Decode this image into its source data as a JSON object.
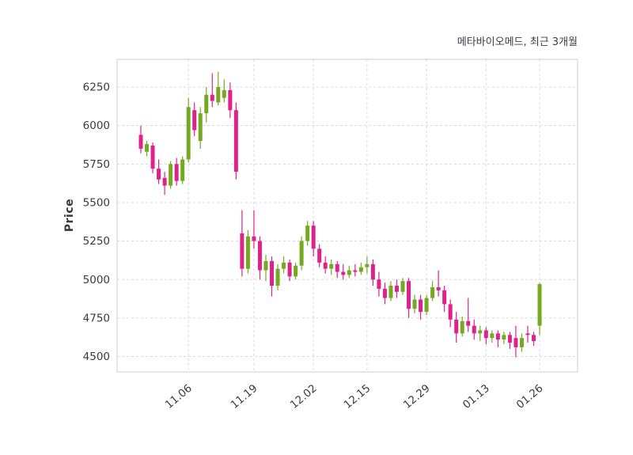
{
  "title": "메타바이오메드, 최근 3개월",
  "chart_data": {
    "type": "candlestick",
    "title": "메타바이오메드, 최근 3개월",
    "xlabel": "",
    "ylabel": "Price",
    "yticks": [
      4500,
      4750,
      5000,
      5250,
      5500,
      5750,
      6000,
      6250
    ],
    "ylim": [
      4400,
      6430
    ],
    "grid": "dashed",
    "xticks": [
      {
        "index": 8,
        "label": "11.06"
      },
      {
        "index": 19,
        "label": "11.19"
      },
      {
        "index": 29,
        "label": "12.02"
      },
      {
        "index": 38,
        "label": "12.15"
      },
      {
        "index": 48,
        "label": "12.29"
      },
      {
        "index": 58,
        "label": "01.13"
      },
      {
        "index": 67,
        "label": "01.26"
      }
    ],
    "colors": {
      "up": "#76a820",
      "down": "#e0218a",
      "grid": "#d8d8d8",
      "border": "#cccccc",
      "axis_text": "#3a3a3a"
    },
    "candles_format": [
      "open",
      "high",
      "low",
      "close"
    ],
    "candles": [
      [
        5940,
        6000,
        5820,
        5850
      ],
      [
        5830,
        5900,
        5800,
        5880
      ],
      [
        5870,
        5890,
        5690,
        5720
      ],
      [
        5720,
        5780,
        5620,
        5650
      ],
      [
        5660,
        5700,
        5550,
        5610
      ],
      [
        5610,
        5770,
        5590,
        5750
      ],
      [
        5750,
        5790,
        5610,
        5640
      ],
      [
        5640,
        5800,
        5620,
        5780
      ],
      [
        5780,
        6180,
        5760,
        6120
      ],
      [
        6100,
        6150,
        5930,
        5970
      ],
      [
        5900,
        6120,
        5850,
        6080
      ],
      [
        6080,
        6250,
        6020,
        6200
      ],
      [
        6200,
        6340,
        6120,
        6160
      ],
      [
        6150,
        6350,
        6130,
        6250
      ],
      [
        6180,
        6300,
        6150,
        6230
      ],
      [
        6230,
        6280,
        6050,
        6100
      ],
      [
        6100,
        6150,
        5650,
        5700
      ],
      [
        5300,
        5450,
        5020,
        5070
      ],
      [
        5070,
        5320,
        5040,
        5280
      ],
      [
        5280,
        5450,
        5200,
        5250
      ],
      [
        5250,
        5280,
        5000,
        5060
      ],
      [
        5060,
        5160,
        4990,
        5120
      ],
      [
        5120,
        5150,
        4890,
        4960
      ],
      [
        4960,
        5100,
        4930,
        5070
      ],
      [
        5070,
        5150,
        5040,
        5110
      ],
      [
        5110,
        5130,
        4990,
        5020
      ],
      [
        5020,
        5110,
        5000,
        5090
      ],
      [
        5090,
        5280,
        5060,
        5250
      ],
      [
        5250,
        5380,
        5220,
        5350
      ],
      [
        5350,
        5380,
        5150,
        5200
      ],
      [
        5200,
        5230,
        5080,
        5110
      ],
      [
        5110,
        5150,
        5040,
        5070
      ],
      [
        5070,
        5130,
        5030,
        5100
      ],
      [
        5100,
        5120,
        5010,
        5050
      ],
      [
        5050,
        5100,
        5000,
        5030
      ],
      [
        5030,
        5090,
        5010,
        5060
      ],
      [
        5060,
        5100,
        5020,
        5050
      ],
      [
        5050,
        5110,
        5030,
        5080
      ],
      [
        5080,
        5150,
        5040,
        5100
      ],
      [
        5100,
        5130,
        4960,
        5000
      ],
      [
        5000,
        5050,
        4890,
        4940
      ],
      [
        4940,
        4980,
        4840,
        4880
      ],
      [
        4880,
        4990,
        4860,
        4960
      ],
      [
        4960,
        5000,
        4880,
        4920
      ],
      [
        4920,
        5010,
        4900,
        4990
      ],
      [
        4990,
        5010,
        4750,
        4810
      ],
      [
        4810,
        4900,
        4780,
        4870
      ],
      [
        4870,
        4900,
        4740,
        4790
      ],
      [
        4790,
        4900,
        4770,
        4880
      ],
      [
        4880,
        4990,
        4860,
        4950
      ],
      [
        4950,
        5060,
        4890,
        4930
      ],
      [
        4930,
        4960,
        4790,
        4840
      ],
      [
        4840,
        4870,
        4690,
        4740
      ],
      [
        4740,
        4790,
        4590,
        4650
      ],
      [
        4650,
        4760,
        4630,
        4730
      ],
      [
        4730,
        4880,
        4660,
        4700
      ],
      [
        4700,
        4740,
        4610,
        4650
      ],
      [
        4650,
        4700,
        4600,
        4670
      ],
      [
        4670,
        4690,
        4580,
        4620
      ],
      [
        4620,
        4670,
        4590,
        4650
      ],
      [
        4650,
        4670,
        4560,
        4610
      ],
      [
        4610,
        4660,
        4580,
        4640
      ],
      [
        4640,
        4660,
        4550,
        4590
      ],
      [
        4620,
        4700,
        4495,
        4560
      ],
      [
        4560,
        4650,
        4530,
        4620
      ],
      [
        4650,
        4700,
        4590,
        4640
      ],
      [
        4640,
        4660,
        4570,
        4600
      ],
      [
        4700,
        4980,
        4640,
        4970
      ]
    ]
  }
}
